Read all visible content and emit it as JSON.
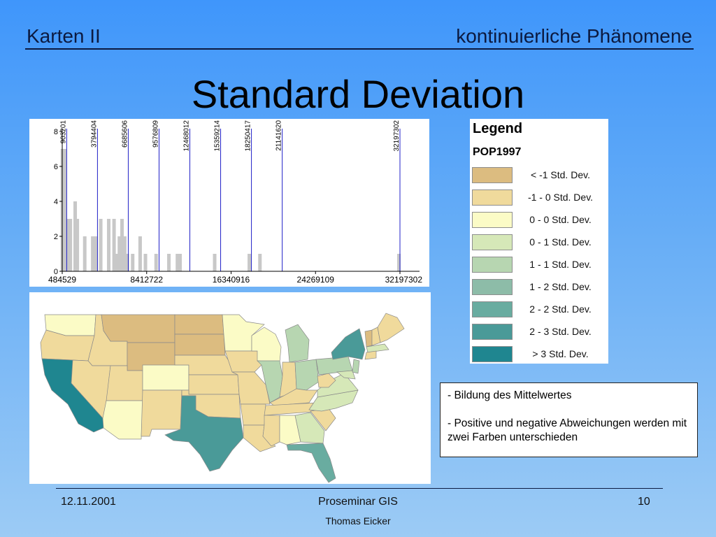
{
  "header": {
    "left": "Karten II",
    "right": "kontinuierliche Phänomene"
  },
  "title": "Standard Deviation",
  "chart_data": {
    "type": "bar",
    "title": "",
    "xlabel": "",
    "ylabel": "",
    "xlim": [
      484529,
      32197302
    ],
    "ylim": [
      0,
      8
    ],
    "x_ticks": [
      "484529",
      "8412722",
      "16340916",
      "24269109",
      "32197302"
    ],
    "x_tick_values": [
      484529,
      8412722,
      16340916,
      24269109,
      32197302
    ],
    "y_ticks": [
      "0",
      "2",
      "4",
      "6",
      "8"
    ],
    "y_tick_values": [
      0,
      2,
      4,
      6,
      8
    ],
    "class_breaks": [
      "903201",
      "3794404",
      "6685606",
      "9576809",
      "12468012",
      "15359214",
      "18250417",
      "21141620",
      "32197302"
    ],
    "class_break_values": [
      903201,
      3794404,
      6685606,
      9576809,
      12468012,
      15359214,
      18250417,
      21141620,
      32197302
    ],
    "bars": [
      {
        "x": 500000,
        "count": 7
      },
      {
        "x": 750000,
        "count": 7
      },
      {
        "x": 1000000,
        "count": 3
      },
      {
        "x": 1250000,
        "count": 3
      },
      {
        "x": 1700000,
        "count": 4
      },
      {
        "x": 1900000,
        "count": 3
      },
      {
        "x": 2600000,
        "count": 2
      },
      {
        "x": 3350000,
        "count": 2
      },
      {
        "x": 3600000,
        "count": 2
      },
      {
        "x": 4100000,
        "count": 3
      },
      {
        "x": 4850000,
        "count": 3
      },
      {
        "x": 5350000,
        "count": 3
      },
      {
        "x": 5600000,
        "count": 1
      },
      {
        "x": 5850000,
        "count": 2
      },
      {
        "x": 6100000,
        "count": 3
      },
      {
        "x": 6350000,
        "count": 2
      },
      {
        "x": 6600000,
        "count": 1
      },
      {
        "x": 7100000,
        "count": 1
      },
      {
        "x": 7800000,
        "count": 2
      },
      {
        "x": 8300000,
        "count": 1
      },
      {
        "x": 9300000,
        "count": 1
      },
      {
        "x": 10500000,
        "count": 1
      },
      {
        "x": 11300000,
        "count": 1
      },
      {
        "x": 11550000,
        "count": 1
      },
      {
        "x": 14800000,
        "count": 1
      },
      {
        "x": 18050000,
        "count": 1
      },
      {
        "x": 19050000,
        "count": 1
      },
      {
        "x": 32100000,
        "count": 1
      }
    ],
    "bar_color": "#c8c8c8",
    "break_line_color": "#2020c8",
    "grid": false
  },
  "legend": {
    "title": "Legend",
    "subtitle": "POP1997",
    "items": [
      {
        "label": "< -1 Std. Dev.",
        "color": "#dcbc80"
      },
      {
        "label": "-1 - 0 Std. Dev.",
        "color": "#f0da9c"
      },
      {
        "label": "0 - 0 Std. Dev.",
        "color": "#fbfbc6"
      },
      {
        "label": "0 - 1 Std. Dev.",
        "color": "#d6e8b8"
      },
      {
        "label": "1 - 1 Std. Dev.",
        "color": "#b7d6b1"
      },
      {
        "label": "1 - 2 Std. Dev.",
        "color": "#8dbca8"
      },
      {
        "label": "2 - 2 Std. Dev.",
        "color": "#69aca0"
      },
      {
        "label": "2 - 3 Std. Dev.",
        "color": "#4a9a98"
      },
      {
        "label": "> 3 Std. Dev.",
        "color": "#1f8690"
      }
    ]
  },
  "note": {
    "line1": "- Bildung des Mittelwertes",
    "line2": "- Positive und negative Abweichungen werden mit zwei Farben unterschieden"
  },
  "footer": {
    "date": "12.11.2001",
    "center": "Proseminar GIS",
    "page": "10",
    "author": "Thomas Eicker"
  }
}
